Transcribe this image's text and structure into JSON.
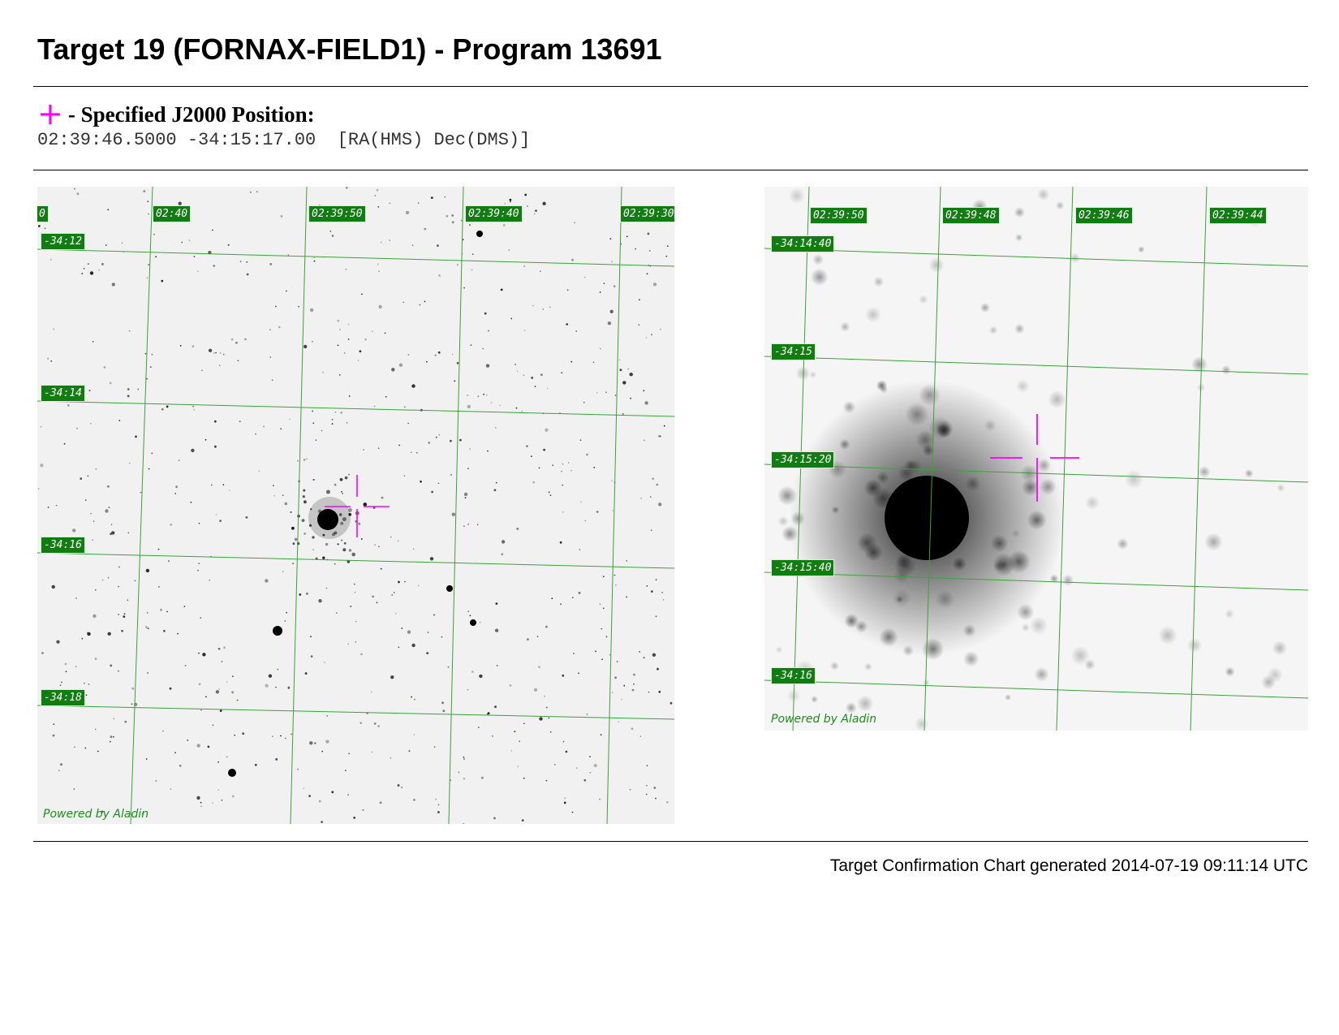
{
  "header": {
    "title": "Target 19 (FORNAX-FIELD1) - Program 13691"
  },
  "position": {
    "marker_label": "- Specified J2000 Position:",
    "coords": "02:39:46.5000 -34:15:17.00  [RA(HMS) Dec(DMS)]"
  },
  "left_panel": {
    "ra_labels": [
      "0",
      "02:40",
      "02:39:50",
      "02:39:40",
      "02:39:30"
    ],
    "dec_labels": [
      "-34:12",
      "-34:14",
      "-34:16",
      "-34:18"
    ],
    "credit": "Powered by Aladin"
  },
  "right_panel": {
    "ra_labels": [
      "02:39:50",
      "02:39:48",
      "02:39:46",
      "02:39:44"
    ],
    "dec_labels": [
      "-34:14:40",
      "-34:15",
      "-34:15:20",
      "-34:15:40",
      "-34:16"
    ],
    "credit": "Powered by Aladin"
  },
  "footer": {
    "generated": "Target Confirmation Chart generated 2014-07-19 09:11:14 UTC"
  },
  "colors": {
    "marker": "#ff00ff",
    "grid": "#3aa33a",
    "label_bg": "#0f7d0f"
  }
}
